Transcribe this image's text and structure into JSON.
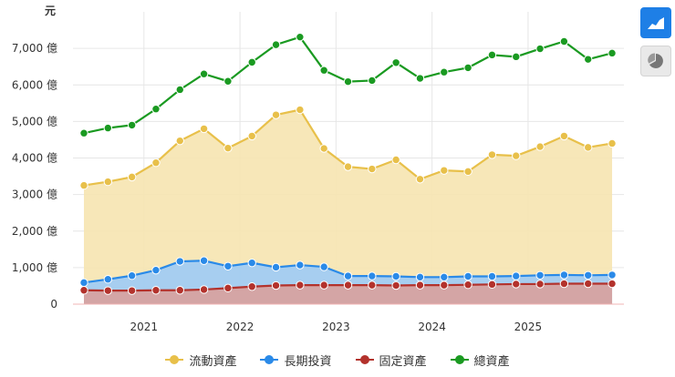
{
  "chart_data": {
    "type": "area",
    "unit_label": "元",
    "y_tick_suffix": " 億",
    "ylim": [
      0,
      8000
    ],
    "y_ticks": [
      0,
      1000,
      2000,
      3000,
      4000,
      5000,
      6000,
      7000
    ],
    "y_tick_labels": [
      "0",
      "1,000 億",
      "2,000 億",
      "3,000 億",
      "4,000 億",
      "5,000 億",
      "6,000 億",
      "7,000 億"
    ],
    "x_ticks": [
      "2021",
      "2022",
      "2023",
      "2024",
      "2025"
    ],
    "x": [
      "2020-Q2",
      "2020-Q3",
      "2020-Q4",
      "2021-Q1",
      "2021-Q2",
      "2021-Q3",
      "2021-Q4",
      "2022-Q1",
      "2022-Q2",
      "2022-Q3",
      "2022-Q4",
      "2023-Q1",
      "2023-Q2",
      "2023-Q3",
      "2023-Q4",
      "2024-Q1",
      "2024-Q2",
      "2024-Q3",
      "2024-Q4",
      "2025-Q1",
      "2025-Q2",
      "2025-Q3",
      "2025-Q4"
    ],
    "series": [
      {
        "name": "流動資產",
        "color": "#e8c04a",
        "fill": "#f6e4b0",
        "values": [
          3250,
          3350,
          3480,
          3870,
          4470,
          4800,
          4270,
          4600,
          5180,
          5320,
          4260,
          3760,
          3700,
          3950,
          3420,
          3660,
          3630,
          4090,
          4060,
          4310,
          4600,
          4290,
          4400
        ]
      },
      {
        "name": "長期投資",
        "color": "#2a8ae8",
        "fill": "#9dcbf6",
        "values": [
          590,
          680,
          780,
          930,
          1170,
          1190,
          1040,
          1130,
          1010,
          1070,
          1020,
          770,
          770,
          760,
          740,
          740,
          760,
          760,
          770,
          790,
          800,
          790,
          800
        ]
      },
      {
        "name": "固定資產",
        "color": "#b3322c",
        "fill": "#d9a19c",
        "values": [
          380,
          370,
          370,
          380,
          380,
          400,
          440,
          480,
          510,
          520,
          520,
          520,
          520,
          510,
          520,
          520,
          530,
          540,
          550,
          550,
          560,
          560,
          560
        ]
      },
      {
        "name": "總資產",
        "color": "#1a9a21",
        "values": [
          4680,
          4820,
          4900,
          5340,
          5870,
          6300,
          6100,
          6620,
          7100,
          7310,
          6400,
          6090,
          6120,
          6610,
          6180,
          6350,
          6470,
          6820,
          6770,
          6990,
          7190,
          6700,
          6870
        ]
      }
    ]
  },
  "controls": {
    "area_chart_icon": "area-chart-icon",
    "pie_chart_icon": "pie-chart-icon"
  }
}
